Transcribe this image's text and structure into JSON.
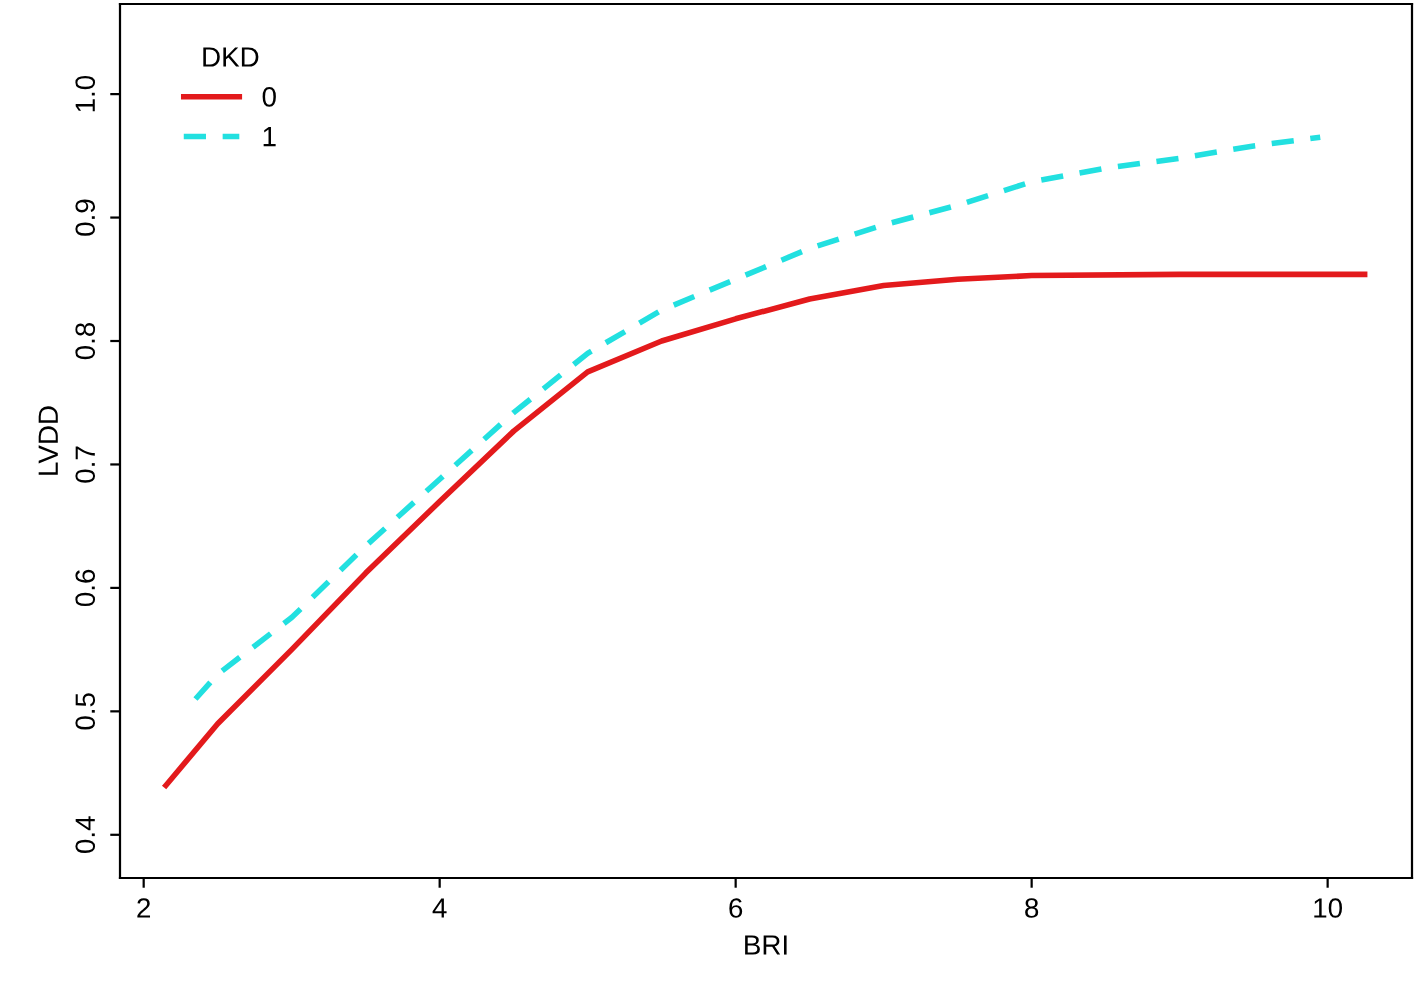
{
  "chart_data": {
    "type": "line",
    "xlabel": "BRI",
    "ylabel": "LVDD",
    "legend_title": "DKD",
    "legend": "top left",
    "grid": false,
    "marker": "none",
    "xlim": [
      1.84,
      10.57
    ],
    "ylim": [
      0.365,
      1.073
    ],
    "xticks": [
      2,
      4,
      6,
      8,
      10
    ],
    "yticks": [
      0.4,
      0.5,
      0.6,
      0.7,
      0.8,
      0.9,
      {
        "value": 1.0,
        "label": "1.0"
      }
    ],
    "series": [
      {
        "name": "0",
        "color": "#e31a1c",
        "line_style": "solid",
        "x": [
          2.15,
          2.5,
          3,
          3.5,
          4,
          4.5,
          5,
          5.5,
          6,
          6.5,
          7,
          7.5,
          8,
          9,
          10.25
        ],
        "values": [
          0.44,
          0.49,
          0.55,
          0.612,
          0.67,
          0.727,
          0.775,
          0.8,
          0.818,
          0.834,
          0.845,
          0.85,
          0.853,
          0.854,
          0.854
        ]
      },
      {
        "name": "1",
        "color": "#22e0e0",
        "line_style": "dashed",
        "x": [
          2.35,
          2.5,
          3,
          3.5,
          4,
          4.5,
          5,
          5.5,
          6,
          6.5,
          7,
          7.5,
          8,
          8.5,
          9,
          9.5,
          9.95
        ],
        "values": [
          0.51,
          0.53,
          0.576,
          0.634,
          0.688,
          0.742,
          0.79,
          0.825,
          0.85,
          0.875,
          0.894,
          0.91,
          0.929,
          0.94,
          0.948,
          0.958,
          0.965
        ]
      }
    ]
  }
}
